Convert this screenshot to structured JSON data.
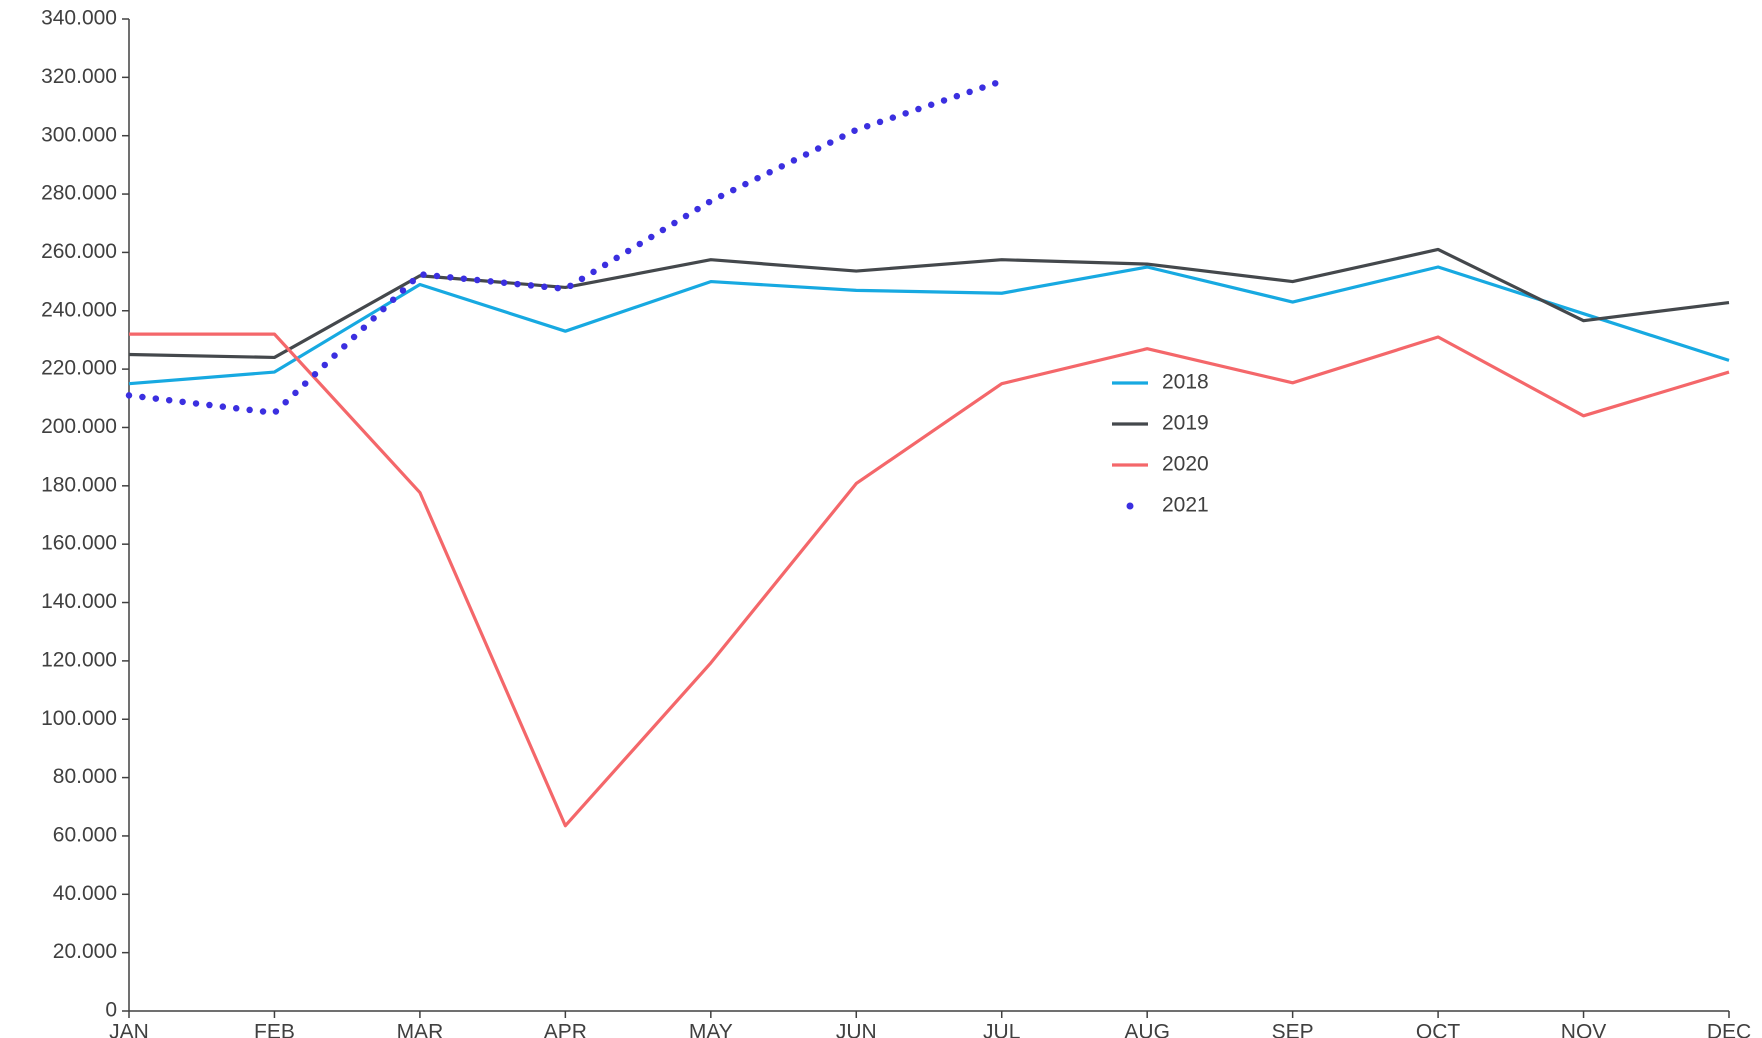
{
  "chart_data": {
    "type": "line",
    "categories": [
      "JAN",
      "FEB",
      "MAR",
      "APR",
      "MAY",
      "JUN",
      "JUL",
      "AUG",
      "SEP",
      "OCT",
      "NOV",
      "DEC"
    ],
    "series": [
      {
        "name": "2018",
        "color": "#17a9e1",
        "style": "solid",
        "values": [
          215000,
          219000,
          249000,
          233000,
          250000,
          247000,
          246000,
          255000,
          243000,
          255000,
          239000,
          223000
        ]
      },
      {
        "name": "2019",
        "color": "#44484c",
        "style": "solid",
        "values": [
          225000,
          224000,
          252000,
          248000,
          257500,
          253600,
          257500,
          256000,
          250000,
          261000,
          236600,
          242800
        ]
      },
      {
        "name": "2020",
        "color": "#f4676a",
        "style": "solid",
        "values": [
          232000,
          232000,
          177700,
          63500,
          119300,
          180800,
          215000,
          227000,
          215300,
          231000,
          204000,
          219000
        ]
      },
      {
        "name": "2021",
        "color": "#3b2fe0",
        "style": "dotted",
        "values": [
          211000,
          205000,
          252500,
          247500,
          277600,
          302000,
          318700,
          null,
          null,
          null,
          null,
          null
        ]
      }
    ],
    "ylim": [
      0,
      340000
    ],
    "yticks": [
      0,
      {
        "value": 20000,
        "label": "20.000"
      },
      {
        "value": 40000,
        "label": "40.000"
      },
      {
        "value": 60000,
        "label": "60.000"
      },
      {
        "value": 80000,
        "label": "80.000"
      },
      {
        "value": 100000,
        "label": "100.000"
      },
      {
        "value": 120000,
        "label": "120.000"
      },
      {
        "value": 140000,
        "label": "140.000"
      },
      {
        "value": 160000,
        "label": "160.000"
      },
      {
        "value": 180000,
        "label": "180.000"
      },
      {
        "value": 200000,
        "label": "200.000"
      },
      {
        "value": 220000,
        "label": "220.000"
      },
      {
        "value": 240000,
        "label": "240.000"
      },
      {
        "value": 260000,
        "label": "260.000"
      },
      {
        "value": 280000,
        "label": "280.000"
      },
      {
        "value": 300000,
        "label": "300.000"
      },
      {
        "value": 320000,
        "label": "320.000"
      },
      {
        "value": 340000,
        "label": "340.000"
      }
    ],
    "grid": false,
    "legend": "center"
  }
}
